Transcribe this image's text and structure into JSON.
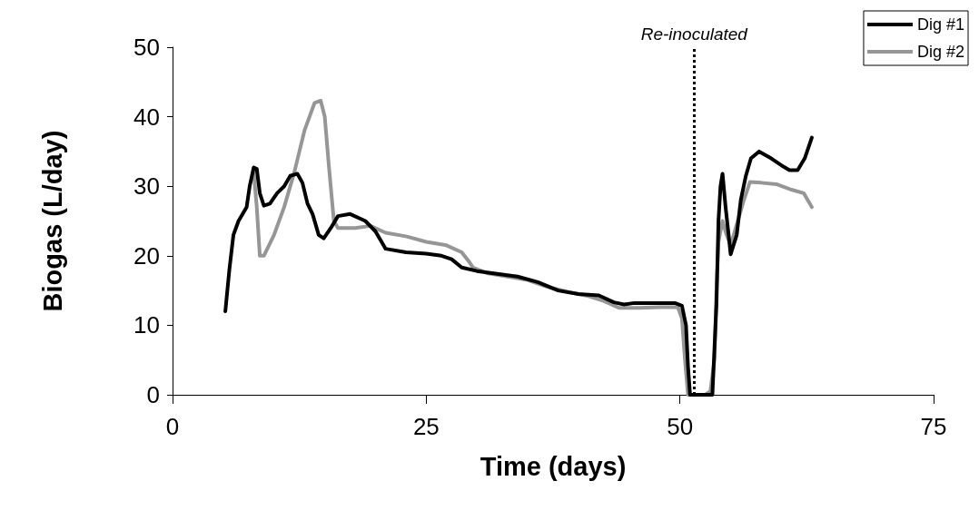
{
  "chart_data": {
    "type": "line",
    "xlabel": "Time (days)",
    "ylabel": "Biogas (L/day)",
    "xlim": [
      0,
      75
    ],
    "xticks": [
      0,
      25,
      50,
      75
    ],
    "ylim": [
      0,
      50
    ],
    "yticks": [
      0,
      10,
      20,
      30,
      40,
      50
    ],
    "grid": false,
    "legend": "top right",
    "marker": "none",
    "line_style": "solid",
    "ref_lines": [
      {
        "axis": "x",
        "value": 51.4,
        "label": "Re-inoculated",
        "color": "#000000",
        "line_style": "dotted"
      }
    ],
    "series": [
      {
        "name": "Dig #1",
        "color": "#000000",
        "x": [
          5.2,
          5.6,
          6,
          6.5,
          7.3,
          7.6,
          8,
          8.3,
          8.6,
          9,
          9.6,
          10.3,
          11,
          11.6,
          12.3,
          12.8,
          13.3,
          13.8,
          14.4,
          14.9,
          15.6,
          16.3,
          17.5,
          19,
          20,
          21,
          23,
          25,
          26.5,
          27.5,
          28.5,
          30,
          32,
          34,
          36,
          38,
          40,
          42,
          43.5,
          44.5,
          45.5,
          48,
          49.5,
          50.2,
          50.6,
          50.8,
          51,
          53.2,
          53.6,
          53.8,
          54,
          54.2,
          54.5,
          54.8,
          55,
          55.6,
          56,
          56.5,
          57,
          57.8,
          59,
          60,
          60.8,
          61.6,
          62.3,
          63
        ],
        "values": [
          12,
          18,
          23,
          25,
          27,
          30,
          32.7,
          32.5,
          29,
          27.2,
          27.5,
          29,
          30,
          31.5,
          31.8,
          30.5,
          27.5,
          26,
          23,
          22.5,
          24,
          25.7,
          26,
          25,
          23.5,
          21,
          20.5,
          20.3,
          20,
          19.5,
          18.3,
          17.8,
          17.4,
          17,
          16.2,
          15,
          14.5,
          14.3,
          13.3,
          13,
          13.2,
          13.2,
          13.2,
          12.8,
          10,
          4,
          0,
          0,
          13,
          25,
          30,
          31.8,
          27,
          23,
          20.2,
          23,
          28,
          31.5,
          34,
          35,
          34,
          33,
          32.3,
          32.3,
          34,
          37
        ]
      },
      {
        "name": "Dig #2",
        "color": "#969696",
        "x": [
          8,
          8.3,
          8.6,
          9,
          10,
          11,
          12,
          12.5,
          13,
          14,
          14.6,
          15,
          15.4,
          15.9,
          16.3,
          18,
          19.5,
          21,
          23,
          25,
          27,
          28.5,
          29.3,
          29.6,
          31,
          33,
          35,
          37,
          39,
          41,
          42.5,
          44,
          46,
          48,
          49.8,
          50.2,
          50.5,
          50.8,
          52.5,
          53,
          53.4,
          53.6,
          53.8,
          54.2,
          54.6,
          55,
          55.5,
          56.3,
          56.9,
          58,
          59.5,
          61,
          62.2,
          62.6,
          63
        ],
        "values": [
          32,
          27,
          20,
          20,
          23,
          27,
          32,
          35,
          38,
          42,
          42.3,
          40,
          33,
          25,
          24,
          24,
          24.3,
          23.3,
          22.8,
          22,
          21.5,
          20.5,
          19,
          18.3,
          17.5,
          17,
          16.5,
          15.5,
          14.8,
          14.2,
          13.5,
          12.5,
          12.5,
          12.6,
          12.6,
          11,
          5,
          0,
          0,
          0.5,
          5,
          15,
          22,
          25,
          23,
          21.5,
          24,
          28,
          30.6,
          30.5,
          30.3,
          29.5,
          29,
          28,
          27
        ]
      }
    ]
  }
}
